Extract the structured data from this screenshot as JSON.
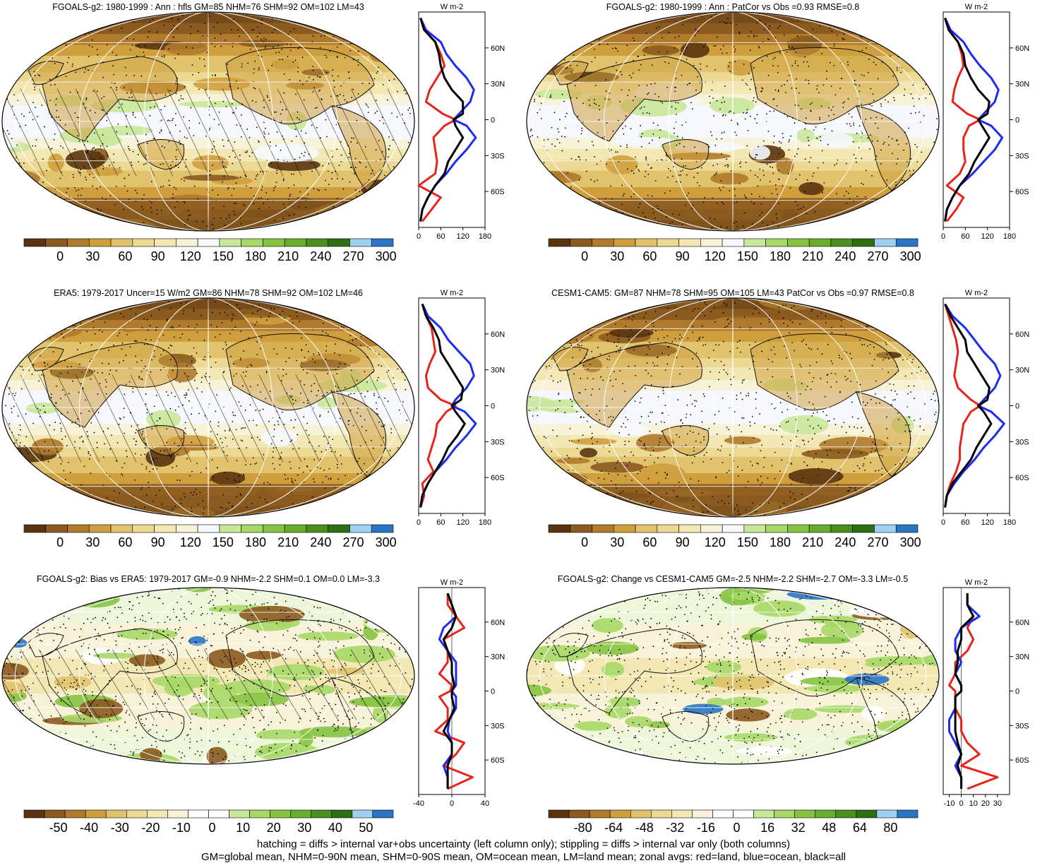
{
  "panels": [
    {
      "title": "FGOALS-g2: 1980-1999 : Ann : hfls GM=85 NHM=76 SHM=92 OM=102 LM=43",
      "kind": "abs",
      "colorbar_labels": [
        "0",
        "30",
        "60",
        "90",
        "120",
        "150",
        "180",
        "210",
        "240",
        "270",
        "300"
      ],
      "zonal_unit": "W m-2",
      "zonal_xticks": [
        "0",
        "60",
        "120",
        "180"
      ],
      "zonal_xrange": [
        0,
        180
      ],
      "lat_ticks": [
        "60N",
        "30N",
        "0",
        "30S",
        "60S"
      ],
      "hatching": true
    },
    {
      "title": "FGOALS-g2: 1980-1999 : Ann : PatCor vs Obs =0.93 RMSE=0.8",
      "kind": "abs",
      "colorbar_labels": [
        "0",
        "30",
        "60",
        "90",
        "120",
        "150",
        "180",
        "210",
        "240",
        "270",
        "300"
      ],
      "zonal_unit": "W m-2",
      "zonal_xticks": [
        "0",
        "60",
        "120",
        "180"
      ],
      "zonal_xrange": [
        0,
        180
      ],
      "lat_ticks": [
        "60N",
        "30N",
        "0",
        "30S",
        "60S"
      ],
      "hatching": false
    },
    {
      "title": "ERA5: 1979-2017 Uncer=15 W/m2 GM=86 NHM=78 SHM=92 OM=102 LM=46",
      "kind": "abs",
      "colorbar_labels": [
        "0",
        "30",
        "60",
        "90",
        "120",
        "150",
        "180",
        "210",
        "240",
        "270",
        "300"
      ],
      "zonal_unit": "W m-2",
      "zonal_xticks": [
        "0",
        "60",
        "120",
        "180"
      ],
      "zonal_xrange": [
        0,
        180
      ],
      "lat_ticks": [
        "60N",
        "30N",
        "0",
        "30S",
        "60S"
      ],
      "hatching": true
    },
    {
      "title": "CESM1-CAM5: GM=87 NHM=78 SHM=95 OM=105 LM=43 PatCor vs Obs =0.97 RMSE=0.8",
      "kind": "abs",
      "colorbar_labels": [
        "0",
        "30",
        "60",
        "90",
        "120",
        "150",
        "180",
        "210",
        "240",
        "270",
        "300"
      ],
      "zonal_unit": "W m-2",
      "zonal_xticks": [
        "0",
        "60",
        "120",
        "180"
      ],
      "zonal_xrange": [
        0,
        180
      ],
      "lat_ticks": [
        "60N",
        "30N",
        "0",
        "30S",
        "60S"
      ],
      "hatching": false
    },
    {
      "title": "FGOALS-g2: Bias vs ERA5: 1979-2017 GM=-0.9 NHM=-2.2 SHM=0.1 OM=0.0 LM=-3.3",
      "kind": "diff",
      "colorbar_labels": [
        "-50",
        "-40",
        "-30",
        "-20",
        "-10",
        "0",
        "10",
        "20",
        "30",
        "40",
        "50"
      ],
      "zonal_unit": "W m-2",
      "zonal_xticks": [
        "-40",
        "0",
        "40"
      ],
      "zonal_xrange": [
        -40,
        40
      ],
      "lat_ticks": [
        "60N",
        "30N",
        "0",
        "30S",
        "60S"
      ],
      "hatching": true
    },
    {
      "title": "FGOALS-g2: Change vs CESM1-CAM5 GM=-2.5 NHM=-2.2 SHM=-2.7 OM=-3.3 LM=-0.5",
      "kind": "diff",
      "colorbar_labels": [
        "-80",
        "-64",
        "-48",
        "-32",
        "-16",
        "0",
        "16",
        "32",
        "48",
        "64",
        "80"
      ],
      "zonal_unit": "W m-2",
      "zonal_xticks": [
        "-10",
        "0",
        "10",
        "20",
        "30"
      ],
      "zonal_xrange": [
        -15,
        40
      ],
      "lat_ticks": [
        "60N",
        "30N",
        "0",
        "30S",
        "60S"
      ],
      "hatching": false
    }
  ],
  "colors": {
    "abs_palette": [
      "#5a3410",
      "#8a5a1f",
      "#b07a2c",
      "#cf9f3e",
      "#e1c36e",
      "#ecd993",
      "#f3e8b4",
      "#f8f2d8",
      "#f6f8fe",
      "#c9e79a",
      "#a7d867",
      "#86c341",
      "#68ac2d",
      "#4c8f1f",
      "#2e6f14",
      "#9fd0f2",
      "#2a76c4"
    ],
    "land": "#e8231c",
    "ocean": "#1d2cf0",
    "all": "#000000"
  },
  "footer": {
    "line1": "hatching = diffs > internal var+obs uncertainty (left column only); stippling = diffs > internal var only (both columns)",
    "line2": "GM=global mean, NHM=0-90N mean, SHM=0-90S mean, OM=ocean mean, LM=land mean; zonal avgs: red=land, blue=ocean, black=all"
  },
  "chart_data": [
    {
      "type": "line",
      "title": "FGOALS-g2: 1980-1999 : Ann : hfls GM=85 NHM=76 SHM=92 OM=102 LM=43",
      "xlabel": "W m-2",
      "xlim": [
        0,
        180
      ],
      "lat": [
        85,
        75,
        65,
        55,
        45,
        35,
        25,
        15,
        5,
        0,
        -5,
        -15,
        -25,
        -35,
        -45,
        -55,
        -65,
        -75,
        -85
      ],
      "series": [
        {
          "name": "land",
          "values": [
            5,
            15,
            45,
            60,
            70,
            50,
            30,
            20,
            65,
            100,
            70,
            40,
            45,
            50,
            45,
            0,
            60,
            35,
            10
          ]
        },
        {
          "name": "ocean",
          "values": [
            5,
            20,
            60,
            75,
            100,
            130,
            150,
            140,
            110,
            95,
            130,
            155,
            130,
            100,
            75,
            45,
            25,
            10,
            5
          ]
        },
        {
          "name": "all",
          "values": [
            5,
            15,
            45,
            55,
            60,
            70,
            90,
            120,
            120,
            95,
            100,
            120,
            100,
            80,
            70,
            45,
            25,
            10,
            5
          ]
        }
      ]
    },
    {
      "type": "line",
      "title": "FGOALS-g2: 1980-1999 : Ann : PatCor vs Obs =0.93 RMSE=0.8",
      "xlabel": "W m-2",
      "xlim": [
        0,
        180
      ],
      "lat": [
        85,
        75,
        65,
        55,
        45,
        35,
        25,
        15,
        5,
        0,
        -5,
        -15,
        -25,
        -35,
        -45,
        -55,
        -65,
        -75,
        -85
      ],
      "series": [
        {
          "name": "land",
          "values": [
            5,
            15,
            40,
            50,
            55,
            40,
            30,
            25,
            65,
            100,
            70,
            55,
            55,
            60,
            45,
            10,
            55,
            35,
            10
          ]
        },
        {
          "name": "ocean",
          "values": [
            5,
            20,
            55,
            75,
            100,
            130,
            150,
            140,
            110,
            95,
            130,
            160,
            140,
            110,
            80,
            45,
            25,
            10,
            5
          ]
        },
        {
          "name": "all",
          "values": [
            5,
            15,
            40,
            55,
            60,
            75,
            95,
            125,
            120,
            95,
            105,
            125,
            105,
            85,
            70,
            45,
            25,
            10,
            5
          ]
        }
      ]
    },
    {
      "type": "line",
      "title": "ERA5: 1979-2017 Uncer=15 W/m2 GM=86 NHM=78 SHM=92 OM=102 LM=46",
      "xlabel": "W m-2",
      "xlim": [
        0,
        180
      ],
      "lat": [
        85,
        75,
        65,
        55,
        45,
        35,
        25,
        15,
        5,
        0,
        -5,
        -15,
        -25,
        -35,
        -45,
        -55,
        -65,
        -75,
        -85
      ],
      "series": [
        {
          "name": "land",
          "values": [
            10,
            20,
            35,
            40,
            45,
            30,
            20,
            25,
            60,
            100,
            75,
            50,
            45,
            35,
            25,
            40,
            10,
            15,
            5
          ]
        },
        {
          "name": "ocean",
          "values": [
            10,
            25,
            60,
            80,
            110,
            140,
            150,
            130,
            100,
            90,
            125,
            155,
            130,
            100,
            75,
            45,
            25,
            10,
            5
          ]
        },
        {
          "name": "all",
          "values": [
            10,
            20,
            40,
            55,
            60,
            80,
            100,
            120,
            115,
            90,
            100,
            125,
            105,
            80,
            65,
            45,
            25,
            10,
            5
          ]
        }
      ]
    },
    {
      "type": "line",
      "title": "CESM1-CAM5: GM=87 NHM=78 SHM=95 OM=105 LM=43 PatCor vs Obs =0.97 RMSE=0.8",
      "xlabel": "W m-2",
      "xlim": [
        0,
        180
      ],
      "lat": [
        85,
        75,
        65,
        55,
        45,
        35,
        25,
        15,
        5,
        0,
        -5,
        -15,
        -25,
        -35,
        -45,
        -55,
        -65,
        -75,
        -85
      ],
      "series": [
        {
          "name": "land",
          "values": [
            5,
            15,
            25,
            35,
            40,
            35,
            30,
            40,
            75,
            100,
            75,
            55,
            50,
            45,
            45,
            35,
            20,
            10,
            5
          ]
        },
        {
          "name": "ocean",
          "values": [
            5,
            25,
            60,
            85,
            110,
            140,
            155,
            140,
            110,
            95,
            130,
            165,
            140,
            110,
            85,
            55,
            30,
            10,
            5
          ]
        },
        {
          "name": "all",
          "values": [
            5,
            20,
            40,
            60,
            65,
            85,
            105,
            125,
            120,
            95,
            110,
            130,
            110,
            90,
            75,
            50,
            25,
            10,
            5
          ]
        }
      ]
    },
    {
      "type": "line",
      "title": "FGOALS-g2: Bias vs ERA5: 1979-2017 GM=-0.9 NHM=-2.2 SHM=0.1 OM=0.0 LM=-3.3",
      "xlabel": "W m-2",
      "xlim": [
        -40,
        40
      ],
      "lat": [
        85,
        75,
        65,
        55,
        45,
        35,
        25,
        15,
        5,
        0,
        -5,
        -15,
        -25,
        -35,
        -45,
        -55,
        -65,
        -75,
        -85
      ],
      "series": [
        {
          "name": "land",
          "values": [
            -5,
            -5,
            5,
            15,
            -10,
            -5,
            -5,
            -15,
            0,
            -2,
            -15,
            -5,
            -5,
            -20,
            15,
            5,
            -10,
            25,
            -5
          ]
        },
        {
          "name": "ocean",
          "values": [
            -5,
            0,
            5,
            -10,
            -15,
            -5,
            5,
            5,
            5,
            0,
            5,
            5,
            -3,
            -5,
            0,
            0,
            -10,
            -5,
            -5
          ]
        },
        {
          "name": "all",
          "values": [
            -5,
            0,
            5,
            0,
            -10,
            -5,
            0,
            0,
            3,
            0,
            0,
            3,
            -3,
            -10,
            0,
            0,
            -5,
            -5,
            -5
          ]
        }
      ]
    },
    {
      "type": "line",
      "title": "FGOALS-g2: Change vs CESM1-CAM5 GM=-2.5 NHM=-2.2 SHM=-2.7 OM=-3.3 LM=-0.5",
      "xlabel": "W m-2",
      "xlim": [
        -15,
        40
      ],
      "lat": [
        85,
        75,
        65,
        55,
        45,
        35,
        25,
        15,
        5,
        0,
        -5,
        -15,
        -25,
        -35,
        -45,
        -55,
        -65,
        -75,
        -85
      ],
      "series": [
        {
          "name": "land",
          "values": [
            5,
            5,
            10,
            5,
            10,
            5,
            -5,
            -5,
            -10,
            -5,
            -5,
            -5,
            0,
            0,
            5,
            15,
            0,
            30,
            5
          ]
        },
        {
          "name": "ocean",
          "values": [
            5,
            5,
            15,
            0,
            -5,
            -5,
            0,
            -5,
            0,
            0,
            -5,
            -5,
            -10,
            -10,
            -5,
            0,
            -5,
            0,
            0
          ]
        },
        {
          "name": "all",
          "values": [
            5,
            5,
            10,
            0,
            0,
            -3,
            -3,
            -5,
            0,
            0,
            -5,
            -5,
            -5,
            -5,
            -3,
            0,
            -3,
            0,
            0
          ]
        }
      ]
    }
  ]
}
